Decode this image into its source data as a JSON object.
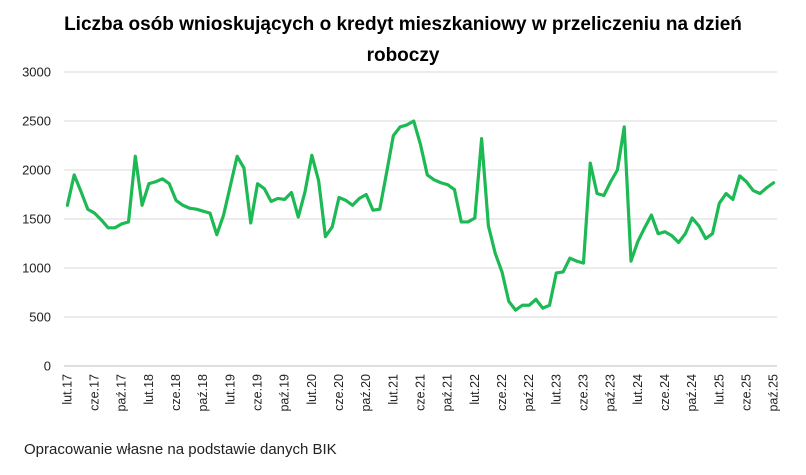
{
  "title_lines": [
    "Liczba osób wnioskujących o kredyt mieszkaniowy w przeliczeniu na dzień",
    "roboczy"
  ],
  "source_note": "Opracowanie własne na podstawie danych BIK",
  "colors": {
    "line": "#1db954",
    "grid": "#d9d9d9",
    "axis": "#bfbfbf"
  },
  "chart_data": {
    "type": "line",
    "title": "Liczba osób wnioskujących o kredyt mieszkaniowy w przeliczeniu na dzień roboczy",
    "xlabel": "",
    "ylabel": "",
    "ylim": [
      0,
      3000
    ],
    "yticks": [
      0,
      500,
      1000,
      1500,
      2000,
      2500,
      3000
    ],
    "grid": true,
    "legend": "none",
    "x_tick_labels": [
      {
        "i": 0,
        "label": "lut.17"
      },
      {
        "i": 4,
        "label": "cze.17"
      },
      {
        "i": 8,
        "label": "paź.17"
      },
      {
        "i": 12,
        "label": "lut.18"
      },
      {
        "i": 16,
        "label": "cze.18"
      },
      {
        "i": 20,
        "label": "paź.18"
      },
      {
        "i": 24,
        "label": "lut.19"
      },
      {
        "i": 28,
        "label": "cze.19"
      },
      {
        "i": 32,
        "label": "paź.19"
      },
      {
        "i": 36,
        "label": "lut.20"
      },
      {
        "i": 40,
        "label": "cze.20"
      },
      {
        "i": 44,
        "label": "paź.20"
      },
      {
        "i": 48,
        "label": "lut.21"
      },
      {
        "i": 52,
        "label": "cze.21"
      },
      {
        "i": 56,
        "label": "paź.21"
      },
      {
        "i": 60,
        "label": "lut.22"
      },
      {
        "i": 64,
        "label": "cze.22"
      },
      {
        "i": 68,
        "label": "paź.22"
      },
      {
        "i": 72,
        "label": "lut.23"
      },
      {
        "i": 76,
        "label": "cze.23"
      },
      {
        "i": 80,
        "label": "paź.23"
      },
      {
        "i": 84,
        "label": "lut.24"
      },
      {
        "i": 88,
        "label": "cze.24"
      },
      {
        "i": 92,
        "label": "paź.24"
      },
      {
        "i": 96,
        "label": "lut.25"
      },
      {
        "i": 100,
        "label": "cze.25"
      },
      {
        "i": 104,
        "label": "paź.25"
      }
    ],
    "values": [
      1640,
      1950,
      1780,
      1600,
      1560,
      1490,
      1410,
      1410,
      1450,
      1470,
      2140,
      1640,
      1860,
      1880,
      1910,
      1860,
      1690,
      1640,
      1610,
      1600,
      1580,
      1560,
      1340,
      1540,
      1840,
      2140,
      2020,
      1460,
      1860,
      1810,
      1680,
      1710,
      1700,
      1770,
      1520,
      1780,
      2150,
      1890,
      1320,
      1420,
      1720,
      1690,
      1640,
      1710,
      1750,
      1590,
      1600,
      1970,
      2350,
      2440,
      2460,
      2500,
      2260,
      1950,
      1900,
      1870,
      1850,
      1800,
      1470,
      1470,
      1510,
      2320,
      1430,
      1150,
      960,
      660,
      570,
      620,
      620,
      680,
      590,
      620,
      950,
      960,
      1100,
      1070,
      1050,
      2070,
      1760,
      1740,
      1880,
      2000,
      2440,
      1070,
      1270,
      1410,
      1540,
      1350,
      1370,
      1330,
      1260,
      1350,
      1510,
      1430,
      1300,
      1350,
      1660,
      1760,
      1700,
      1940,
      1880,
      1790,
      1760,
      1820,
      1870
    ]
  }
}
